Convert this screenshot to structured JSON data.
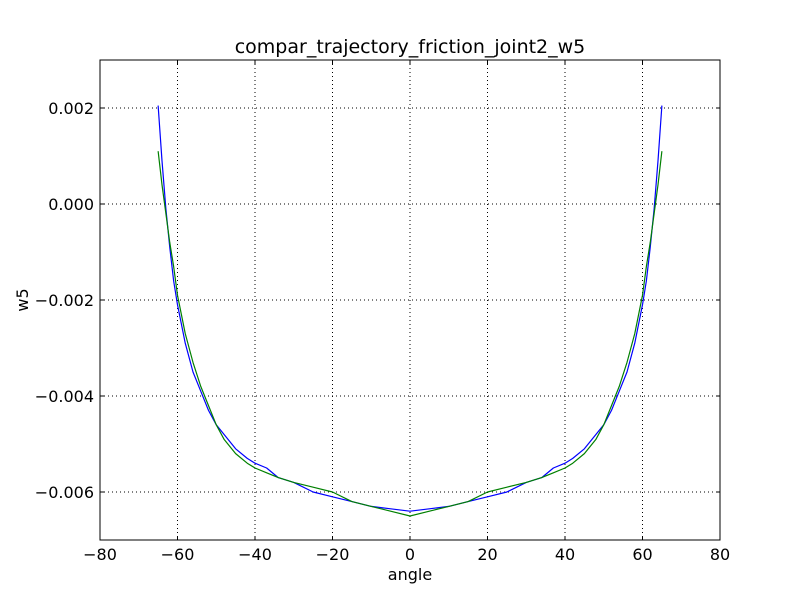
{
  "chart_data": {
    "type": "line",
    "title": "compar_trajectory_friction_joint2_w5",
    "xlabel": "angle",
    "ylabel": "w5",
    "xlim": [
      -80,
      80
    ],
    "ylim": [
      -0.007,
      0.003
    ],
    "grid": true,
    "x_ticks": [
      -80,
      -60,
      -40,
      -20,
      0,
      20,
      40,
      60,
      80
    ],
    "x_tick_labels": [
      "−80",
      "−60",
      "−40",
      "−20",
      "0",
      "20",
      "40",
      "60",
      "80"
    ],
    "y_ticks": [
      -0.006,
      -0.004,
      -0.002,
      0.0,
      0.002
    ],
    "y_tick_labels": [
      "−0.006",
      "−0.004",
      "−0.002",
      "0.000",
      "0.002"
    ],
    "series": [
      {
        "color": "#0000ff",
        "x": [
          -65,
          -64,
          -63,
          -62,
          -61,
          -60,
          -58,
          -56,
          -54,
          -52,
          -50,
          -48,
          -45,
          -42,
          -40,
          -37,
          -34,
          -30,
          -25,
          -20,
          -15,
          -10,
          -5,
          0,
          5,
          10,
          15,
          20,
          25,
          30,
          34,
          37,
          40,
          42,
          45,
          48,
          50,
          52,
          54,
          56,
          58,
          60,
          61,
          62,
          63,
          64,
          65
        ],
        "y": [
          0.00205,
          0.0009,
          -0.0001,
          -0.0009,
          -0.0016,
          -0.0021,
          -0.0029,
          -0.0035,
          -0.0039,
          -0.0043,
          -0.0046,
          -0.0048,
          -0.0051,
          -0.0053,
          -0.0054,
          -0.0055,
          -0.0057,
          -0.0058,
          -0.006,
          -0.0061,
          -0.0062,
          -0.0063,
          -0.00635,
          -0.0064,
          -0.00635,
          -0.0063,
          -0.0062,
          -0.0061,
          -0.006,
          -0.0058,
          -0.0057,
          -0.0055,
          -0.0054,
          -0.0053,
          -0.0051,
          -0.0048,
          -0.0046,
          -0.0043,
          -0.0039,
          -0.0035,
          -0.0029,
          -0.0021,
          -0.0016,
          -0.0009,
          -0.0001,
          0.0009,
          0.00205
        ]
      },
      {
        "color": "#008000",
        "x": [
          -65,
          -64,
          -63,
          -62,
          -61,
          -60,
          -58,
          -56,
          -54,
          -52,
          -50,
          -48,
          -45,
          -42,
          -40,
          -37,
          -34,
          -30,
          -25,
          -20,
          -15,
          -10,
          -5,
          0,
          5,
          10,
          15,
          20,
          25,
          30,
          34,
          37,
          40,
          42,
          45,
          48,
          50,
          52,
          54,
          56,
          58,
          60,
          61,
          62,
          63,
          64,
          65
        ],
        "y": [
          0.0011,
          0.0004,
          -0.0002,
          -0.0008,
          -0.0013,
          -0.0019,
          -0.0027,
          -0.0033,
          -0.0038,
          -0.0042,
          -0.0046,
          -0.0049,
          -0.0052,
          -0.0054,
          -0.0055,
          -0.0056,
          -0.0057,
          -0.0058,
          -0.0059,
          -0.006,
          -0.0062,
          -0.0063,
          -0.0064,
          -0.0065,
          -0.0064,
          -0.0063,
          -0.0062,
          -0.006,
          -0.0059,
          -0.0058,
          -0.0057,
          -0.0056,
          -0.0055,
          -0.0054,
          -0.0052,
          -0.0049,
          -0.0046,
          -0.0042,
          -0.0038,
          -0.0033,
          -0.0027,
          -0.0019,
          -0.0013,
          -0.0008,
          -0.0002,
          0.0004,
          0.0011
        ]
      }
    ]
  }
}
